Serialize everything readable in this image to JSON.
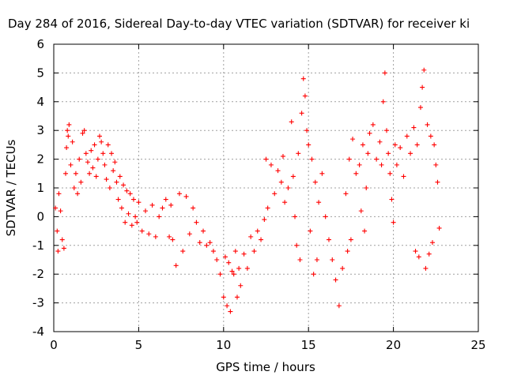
{
  "chart_data": {
    "type": "scatter",
    "title": "Day 284 of 2016, Sidereal Day-to-day VTEC variation (SDTVAR) for receiver ki",
    "xlabel": "GPS time / hours",
    "ylabel": "SDTVAR / TECUs",
    "xlim": [
      0,
      25
    ],
    "ylim": [
      -4,
      6
    ],
    "xticks": [
      "0",
      "5",
      "10",
      "15",
      "20",
      "25"
    ],
    "yticks": [
      "-4",
      "-3",
      "-2",
      "-1",
      "0",
      "1",
      "2",
      "3",
      "4",
      "5",
      "6"
    ],
    "grid": true,
    "legend": "none",
    "marker": "plus",
    "color": "#ff0000",
    "series": [
      {
        "points": [
          [
            0.1,
            0.3
          ],
          [
            0.2,
            -0.5
          ],
          [
            0.25,
            -1.2
          ],
          [
            0.3,
            0.8
          ],
          [
            0.4,
            0.2
          ],
          [
            0.5,
            -0.8
          ],
          [
            0.6,
            -1.1
          ],
          [
            0.7,
            1.5
          ],
          [
            0.75,
            2.4
          ],
          [
            0.8,
            3.0
          ],
          [
            0.85,
            2.8
          ],
          [
            0.9,
            3.2
          ],
          [
            1.0,
            1.8
          ],
          [
            1.1,
            2.6
          ],
          [
            1.2,
            1.0
          ],
          [
            1.3,
            1.5
          ],
          [
            1.4,
            0.8
          ],
          [
            1.5,
            2.0
          ],
          [
            1.6,
            1.2
          ],
          [
            1.7,
            2.9
          ],
          [
            1.8,
            3.0
          ],
          [
            1.9,
            2.2
          ],
          [
            2.0,
            1.9
          ],
          [
            2.1,
            1.5
          ],
          [
            2.2,
            2.3
          ],
          [
            2.3,
            1.7
          ],
          [
            2.4,
            2.5
          ],
          [
            2.5,
            1.4
          ],
          [
            2.6,
            2.0
          ],
          [
            2.7,
            2.8
          ],
          [
            2.8,
            2.6
          ],
          [
            2.9,
            2.2
          ],
          [
            3.0,
            1.8
          ],
          [
            3.1,
            1.3
          ],
          [
            3.2,
            2.5
          ],
          [
            3.3,
            1.0
          ],
          [
            3.4,
            2.2
          ],
          [
            3.5,
            1.6
          ],
          [
            3.6,
            1.9
          ],
          [
            3.7,
            1.2
          ],
          [
            3.8,
            0.6
          ],
          [
            3.9,
            1.4
          ],
          [
            4.0,
            0.3
          ],
          [
            4.1,
            1.1
          ],
          [
            4.2,
            -0.2
          ],
          [
            4.3,
            0.9
          ],
          [
            4.4,
            0.1
          ],
          [
            4.5,
            0.8
          ],
          [
            4.6,
            -0.3
          ],
          [
            4.7,
            0.6
          ],
          [
            4.8,
            0.0
          ],
          [
            4.9,
            -0.2
          ],
          [
            5.0,
            0.5
          ],
          [
            5.2,
            -0.5
          ],
          [
            5.4,
            0.2
          ],
          [
            5.6,
            -0.6
          ],
          [
            5.8,
            0.4
          ],
          [
            6.0,
            -0.7
          ],
          [
            6.2,
            0.0
          ],
          [
            6.4,
            0.3
          ],
          [
            6.6,
            0.6
          ],
          [
            6.8,
            -0.7
          ],
          [
            6.9,
            0.4
          ],
          [
            7.0,
            -0.8
          ],
          [
            7.2,
            -1.7
          ],
          [
            7.4,
            0.8
          ],
          [
            7.6,
            -1.2
          ],
          [
            7.8,
            0.7
          ],
          [
            8.0,
            -0.6
          ],
          [
            8.2,
            0.3
          ],
          [
            8.4,
            -0.2
          ],
          [
            8.6,
            -0.9
          ],
          [
            8.8,
            -0.5
          ],
          [
            9.0,
            -1.0
          ],
          [
            9.2,
            -0.9
          ],
          [
            9.4,
            -1.2
          ],
          [
            9.6,
            -1.5
          ],
          [
            9.8,
            -2.0
          ],
          [
            10.0,
            -2.8
          ],
          [
            10.1,
            -1.4
          ],
          [
            10.2,
            -3.1
          ],
          [
            10.3,
            -1.6
          ],
          [
            10.4,
            -3.3
          ],
          [
            10.5,
            -1.9
          ],
          [
            10.6,
            -2.0
          ],
          [
            10.7,
            -1.2
          ],
          [
            10.8,
            -2.8
          ],
          [
            10.9,
            -1.8
          ],
          [
            11.0,
            -2.4
          ],
          [
            11.2,
            -1.3
          ],
          [
            11.4,
            -1.8
          ],
          [
            11.6,
            -0.7
          ],
          [
            11.8,
            -1.2
          ],
          [
            12.0,
            -0.5
          ],
          [
            12.2,
            -0.8
          ],
          [
            12.4,
            -0.1
          ],
          [
            12.5,
            2.0
          ],
          [
            12.6,
            0.3
          ],
          [
            12.8,
            1.8
          ],
          [
            13.0,
            0.8
          ],
          [
            13.2,
            1.6
          ],
          [
            13.4,
            1.2
          ],
          [
            13.5,
            2.1
          ],
          [
            13.6,
            0.5
          ],
          [
            13.8,
            1.0
          ],
          [
            14.0,
            3.3
          ],
          [
            14.1,
            1.4
          ],
          [
            14.2,
            0.0
          ],
          [
            14.3,
            -1.0
          ],
          [
            14.4,
            2.2
          ],
          [
            14.5,
            -1.5
          ],
          [
            14.6,
            3.6
          ],
          [
            14.7,
            4.8
          ],
          [
            14.8,
            4.2
          ],
          [
            14.9,
            3.0
          ],
          [
            15.0,
            2.5
          ],
          [
            15.1,
            -0.5
          ],
          [
            15.2,
            2.0
          ],
          [
            15.3,
            -2.0
          ],
          [
            15.4,
            1.2
          ],
          [
            15.5,
            -1.5
          ],
          [
            15.6,
            0.5
          ],
          [
            15.8,
            1.5
          ],
          [
            16.0,
            0.0
          ],
          [
            16.2,
            -0.8
          ],
          [
            16.4,
            -1.5
          ],
          [
            16.6,
            -2.2
          ],
          [
            16.8,
            -3.1
          ],
          [
            17.0,
            -1.8
          ],
          [
            17.2,
            0.8
          ],
          [
            17.3,
            -1.2
          ],
          [
            17.4,
            2.0
          ],
          [
            17.5,
            -0.8
          ],
          [
            17.6,
            2.7
          ],
          [
            17.8,
            1.5
          ],
          [
            18.0,
            1.8
          ],
          [
            18.1,
            0.2
          ],
          [
            18.2,
            2.5
          ],
          [
            18.3,
            -0.5
          ],
          [
            18.4,
            1.0
          ],
          [
            18.5,
            2.2
          ],
          [
            18.6,
            2.9
          ],
          [
            18.8,
            3.2
          ],
          [
            19.0,
            2.0
          ],
          [
            19.2,
            2.6
          ],
          [
            19.3,
            1.8
          ],
          [
            19.4,
            4.0
          ],
          [
            19.5,
            5.0
          ],
          [
            19.6,
            3.0
          ],
          [
            19.7,
            2.2
          ],
          [
            19.8,
            1.5
          ],
          [
            19.9,
            0.6
          ],
          [
            20.0,
            -0.2
          ],
          [
            20.1,
            2.5
          ],
          [
            20.2,
            1.8
          ],
          [
            20.4,
            2.4
          ],
          [
            20.6,
            1.4
          ],
          [
            20.8,
            2.8
          ],
          [
            21.0,
            2.2
          ],
          [
            21.2,
            3.1
          ],
          [
            21.3,
            -1.2
          ],
          [
            21.4,
            2.5
          ],
          [
            21.5,
            -1.4
          ],
          [
            21.6,
            3.8
          ],
          [
            21.7,
            4.5
          ],
          [
            21.8,
            5.1
          ],
          [
            21.9,
            -1.8
          ],
          [
            22.0,
            3.2
          ],
          [
            22.1,
            -1.3
          ],
          [
            22.2,
            2.8
          ],
          [
            22.3,
            -0.9
          ],
          [
            22.4,
            2.5
          ],
          [
            22.5,
            1.8
          ],
          [
            22.6,
            1.2
          ],
          [
            22.7,
            -0.4
          ]
        ]
      }
    ]
  }
}
